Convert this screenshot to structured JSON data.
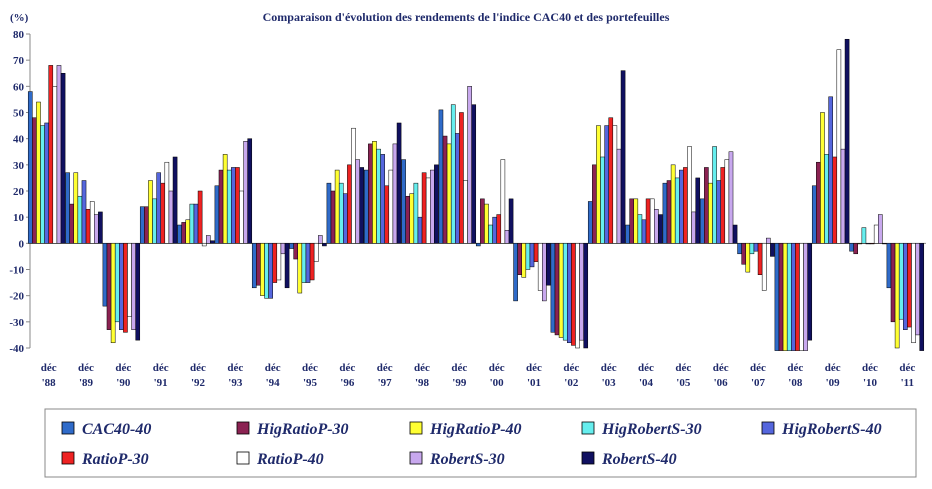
{
  "chart_data": {
    "type": "bar",
    "title": "Comparaison d'évolution des rendements de l'indice CAC40 et des portefeuilles",
    "unit_label": "(%)",
    "ylim": [
      -40,
      80
    ],
    "yticks": [
      -40,
      -30,
      -20,
      -10,
      0,
      10,
      20,
      30,
      40,
      50,
      60,
      70,
      80
    ],
    "grid": false,
    "legend_position": "bottom",
    "categories": [
      [
        "déc",
        "'88"
      ],
      [
        "déc",
        "'89"
      ],
      [
        "déc",
        "'90"
      ],
      [
        "déc",
        "'91"
      ],
      [
        "déc",
        "'92"
      ],
      [
        "déc",
        "'93"
      ],
      [
        "déc",
        "'94"
      ],
      [
        "déc",
        "'95"
      ],
      [
        "déc",
        "'96"
      ],
      [
        "déc",
        "'97"
      ],
      [
        "déc",
        "'98"
      ],
      [
        "déc",
        "'99"
      ],
      [
        "déc",
        "'00"
      ],
      [
        "déc",
        "'01"
      ],
      [
        "déc",
        "'02"
      ],
      [
        "déc",
        "'03"
      ],
      [
        "déc",
        "'04"
      ],
      [
        "déc",
        "'05"
      ],
      [
        "déc",
        "'06"
      ],
      [
        "déc",
        "'07"
      ],
      [
        "déc",
        "'08"
      ],
      [
        "déc",
        "'09"
      ],
      [
        "déc",
        "'10"
      ],
      [
        "déc",
        "'11"
      ]
    ],
    "series": [
      {
        "name": "CAC40-40",
        "color": "#2f6bc9",
        "values": [
          58,
          27,
          -24,
          14,
          7,
          22,
          -17,
          -2,
          23,
          28,
          32,
          51,
          -1,
          -22,
          -34,
          16,
          7,
          23,
          17,
          -4,
          -41,
          22,
          -3,
          -17
        ]
      },
      {
        "name": "HigRatioP-30",
        "color": "#8b2252",
        "values": [
          48,
          15,
          -33,
          14,
          8,
          28,
          -16,
          -6,
          20,
          38,
          18,
          41,
          17,
          -12,
          -35,
          30,
          17,
          24,
          29,
          -8,
          -41,
          31,
          -4,
          -30
        ]
      },
      {
        "name": "HigRatioP-40",
        "color": "#ffff33",
        "values": [
          54,
          27,
          -38,
          24,
          9,
          34,
          -20,
          -19,
          28,
          39,
          19,
          38,
          15,
          -13,
          -36,
          45,
          17,
          30,
          23,
          -11,
          -41,
          50,
          0,
          -40
        ]
      },
      {
        "name": "HigRobertS-30",
        "color": "#66eeee",
        "values": [
          45,
          18,
          -30,
          17,
          15,
          28,
          -21,
          -15,
          23,
          36,
          23,
          53,
          7,
          -10,
          -37,
          33,
          11,
          25,
          37,
          -4,
          -41,
          34,
          6,
          -29
        ]
      },
      {
        "name": "HigRobertS-40",
        "color": "#5566dd",
        "values": [
          46,
          24,
          -33,
          27,
          15,
          29,
          -21,
          -15,
          19,
          34,
          10,
          42,
          10,
          -9,
          -38,
          45,
          9,
          28,
          24,
          -3,
          -41,
          56,
          0,
          -33
        ]
      },
      {
        "name": "RatioP-30",
        "color": "#ee2222",
        "values": [
          68,
          13,
          -34,
          23,
          20,
          29,
          -15,
          -14,
          30,
          22,
          27,
          50,
          11,
          -7,
          -39,
          48,
          17,
          29,
          29,
          -12,
          -41,
          33,
          0,
          -32
        ]
      },
      {
        "name": "RatioP-40",
        "color": "#ffffff",
        "values": [
          60,
          16,
          -28,
          31,
          -1,
          20,
          -14,
          -7,
          44,
          28,
          25,
          24,
          32,
          -18,
          -40,
          45,
          17,
          37,
          32,
          -18,
          -41,
          74,
          7,
          -38
        ]
      },
      {
        "name": "RobertS-30",
        "color": "#c8a8ee",
        "values": [
          68,
          11,
          -33,
          20,
          3,
          39,
          -4,
          3,
          32,
          38,
          28,
          60,
          5,
          -22,
          -37,
          36,
          13,
          12,
          35,
          2,
          -41,
          36,
          11,
          -35
        ]
      },
      {
        "name": "RobertS-40",
        "color": "#101060",
        "values": [
          65,
          12,
          -37,
          33,
          1,
          40,
          -17,
          -1,
          29,
          46,
          30,
          53,
          17,
          -16,
          -40,
          66,
          11,
          25,
          7,
          -5,
          -37,
          78,
          0,
          -41
        ]
      }
    ]
  }
}
